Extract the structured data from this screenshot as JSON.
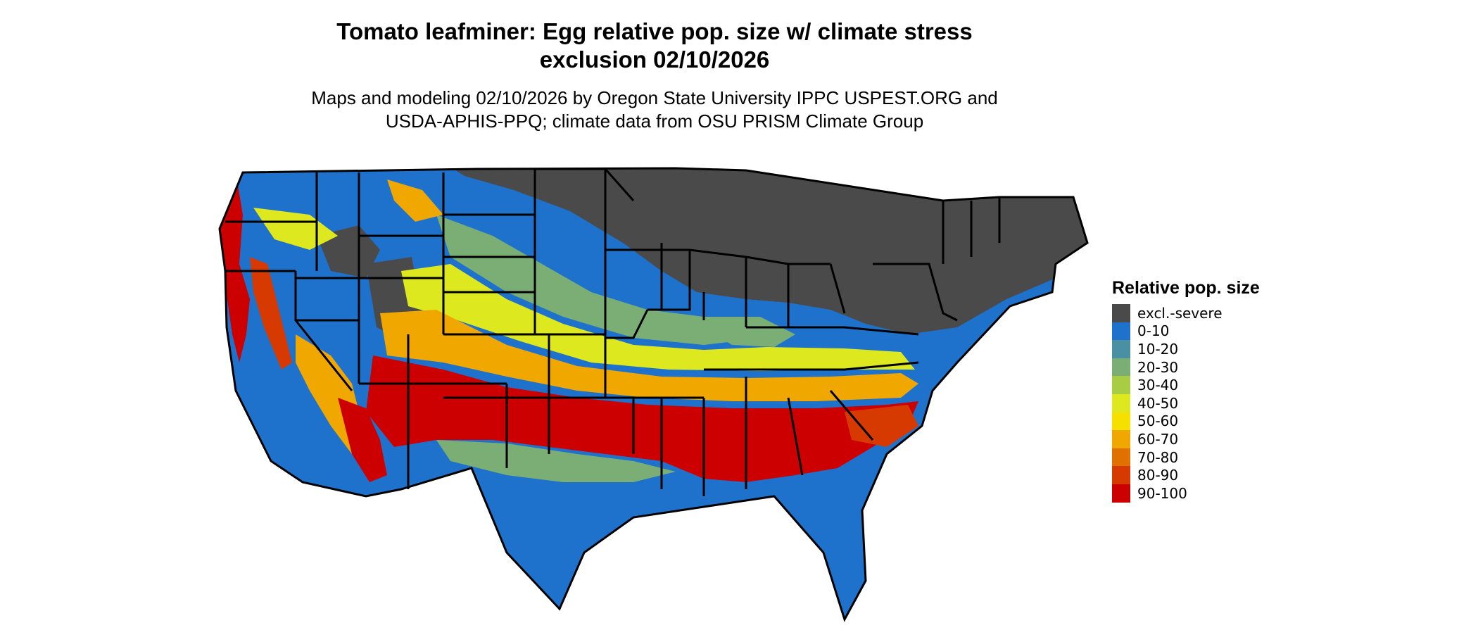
{
  "title": {
    "line1": "Tomato leafminer: Egg relative pop. size w/ climate stress",
    "line2": "exclusion 02/10/2026"
  },
  "subtitle": {
    "line1": "Maps and modeling 02/10/2026 by Oregon State University IPPC USPEST.ORG and",
    "line2": "USDA-APHIS-PPQ; climate data from OSU PRISM Climate Group"
  },
  "legend": {
    "title": "Relative pop. size",
    "items": [
      {
        "label": "excl.-severe",
        "color": "#4a4a4a"
      },
      {
        "label": "0-10",
        "color": "#1f72cc"
      },
      {
        "label": "10-20",
        "color": "#4a90a4"
      },
      {
        "label": "20-30",
        "color": "#7bae74"
      },
      {
        "label": "30-40",
        "color": "#a8cc44"
      },
      {
        "label": "40-50",
        "color": "#dde81f"
      },
      {
        "label": "50-60",
        "color": "#f5e000"
      },
      {
        "label": "60-70",
        "color": "#f0a800"
      },
      {
        "label": "70-80",
        "color": "#e07000"
      },
      {
        "label": "80-90",
        "color": "#d63a00"
      },
      {
        "label": "90-100",
        "color": "#cc0000"
      }
    ]
  }
}
